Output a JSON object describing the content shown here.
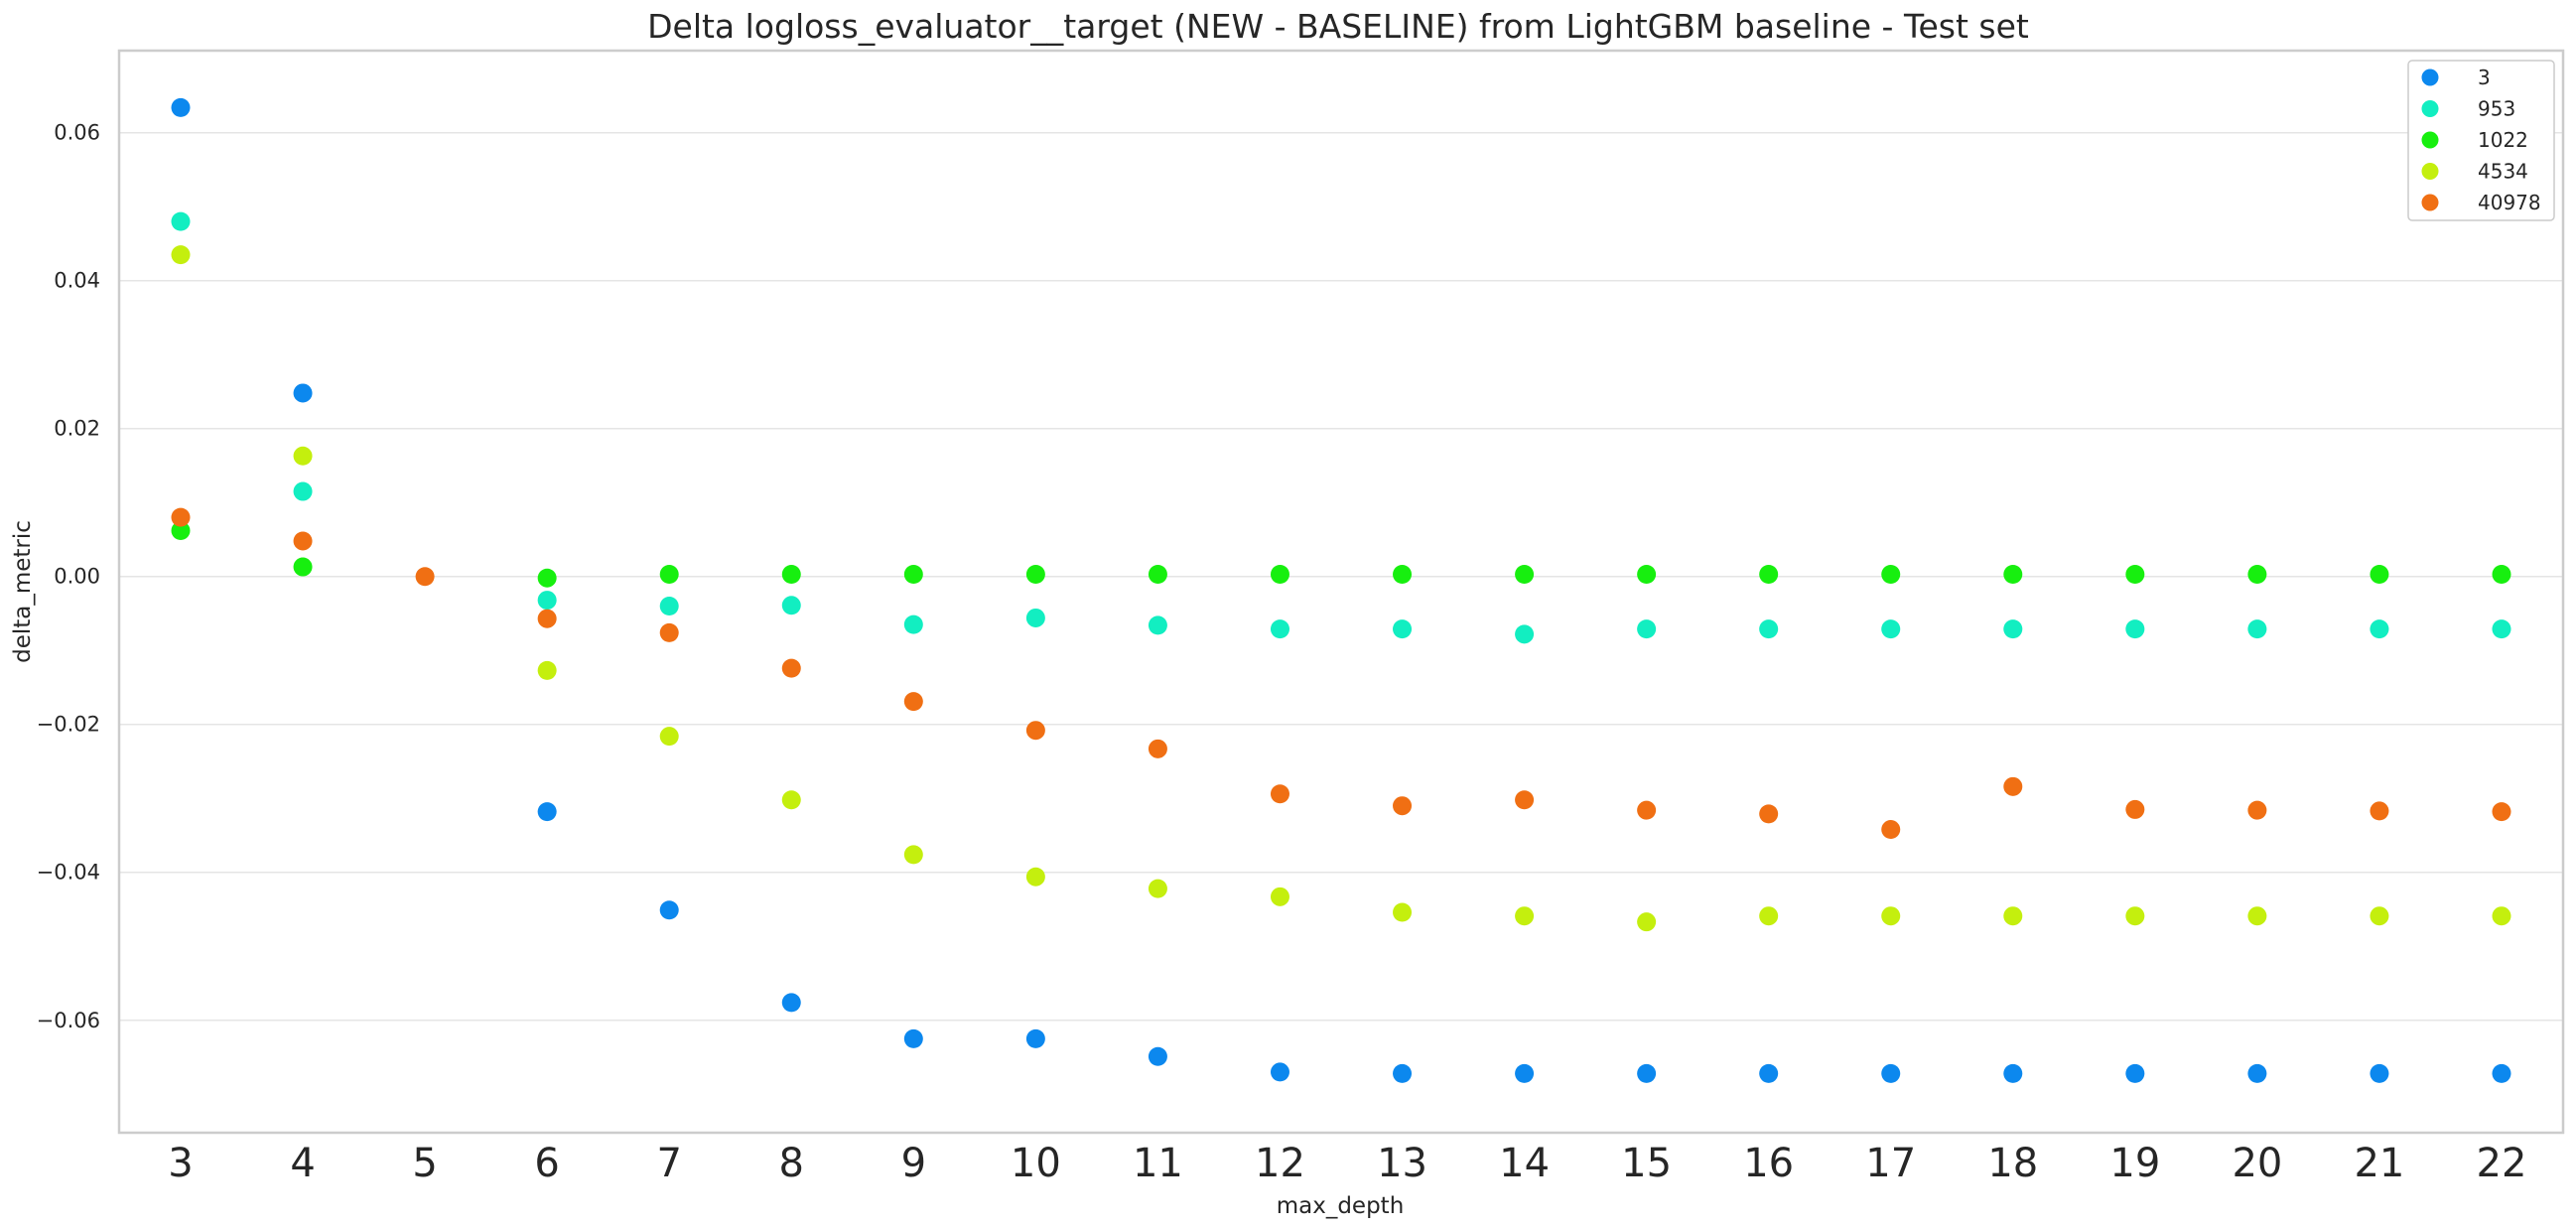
{
  "chart_data": {
    "type": "scatter",
    "title": "Delta logloss_evaluator__target (NEW - BASELINE) from LightGBM baseline - Test set",
    "xlabel": "max_depth",
    "ylabel": "delta_metric",
    "ylim": [
      -0.0752,
      0.0711
    ],
    "yticks": [
      -0.06,
      -0.04,
      -0.02,
      0.0,
      0.02,
      0.04,
      0.06
    ],
    "ytick_labels": [
      "−0.06",
      "−0.04",
      "−0.02",
      "0.00",
      "0.02",
      "0.04",
      "0.06"
    ],
    "categories": [
      "3",
      "4",
      "5",
      "6",
      "7",
      "8",
      "9",
      "10",
      "11",
      "12",
      "13",
      "14",
      "15",
      "16",
      "17",
      "18",
      "19",
      "20",
      "21",
      "22"
    ],
    "grid": true,
    "legend_position": "top-right",
    "series": [
      {
        "name": "3",
        "color": "#0c88ee",
        "values": [
          0.0634,
          0.0248,
          null,
          -0.0318,
          -0.0451,
          -0.0576,
          -0.0625,
          -0.0625,
          -0.0649,
          -0.067,
          -0.0672,
          -0.0672,
          -0.0672,
          -0.0672,
          -0.0672,
          -0.0672,
          -0.0672,
          -0.0672,
          -0.0672,
          -0.0672
        ]
      },
      {
        "name": "953",
        "color": "#12eec1",
        "values": [
          0.048,
          0.0115,
          null,
          -0.0032,
          -0.004,
          -0.0039,
          -0.0065,
          -0.0056,
          -0.0066,
          -0.0071,
          -0.0071,
          -0.0078,
          -0.0071,
          -0.0071,
          -0.0071,
          -0.0071,
          -0.0071,
          -0.0071,
          -0.0071,
          -0.0071
        ]
      },
      {
        "name": "1022",
        "color": "#17ef0f",
        "values": [
          0.0062,
          0.0013,
          null,
          -0.0002,
          0.0003,
          0.0003,
          0.0003,
          0.0003,
          0.0003,
          0.0003,
          0.0003,
          0.0003,
          0.0003,
          0.0003,
          0.0003,
          0.0003,
          0.0003,
          0.0003,
          0.0003,
          0.0003
        ]
      },
      {
        "name": "4534",
        "color": "#c4ef0e",
        "values": [
          0.0435,
          0.0163,
          null,
          -0.0127,
          -0.0216,
          -0.0302,
          -0.0376,
          -0.0406,
          -0.0422,
          -0.0433,
          -0.0454,
          -0.0459,
          -0.0467,
          -0.0459,
          -0.0459,
          -0.0459,
          -0.0459,
          -0.0459,
          -0.0459,
          -0.0459
        ]
      },
      {
        "name": "40978",
        "color": "#f06f13",
        "values": [
          0.008,
          0.0048,
          0.0,
          -0.0057,
          -0.0076,
          -0.0124,
          -0.0169,
          -0.0208,
          -0.0233,
          -0.0294,
          -0.031,
          -0.0302,
          -0.0316,
          -0.0321,
          -0.0342,
          -0.0284,
          -0.0315,
          -0.0316,
          -0.0317,
          -0.0318
        ]
      }
    ]
  }
}
